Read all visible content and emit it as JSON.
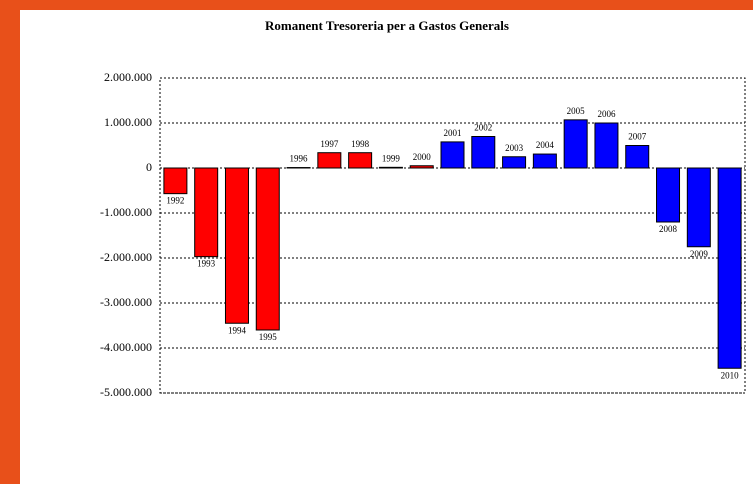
{
  "chart_data": {
    "type": "bar",
    "title": "Romanent Tresoreria per a Gastos Generals",
    "categories": [
      "1992",
      "1993",
      "1994",
      "1995",
      "1996",
      "1997",
      "1998",
      "1999",
      "2000",
      "2001",
      "2002",
      "2003",
      "2004",
      "2005",
      "2006",
      "2007",
      "2008",
      "2009",
      "2010"
    ],
    "values": [
      -570000,
      -1970000,
      -3450000,
      -3600000,
      10000,
      340000,
      340000,
      15000,
      50000,
      580000,
      700000,
      250000,
      310000,
      1070000,
      1000000,
      500000,
      -1200000,
      -1750000,
      -4450000
    ],
    "colors": [
      "#ff0000",
      "#ff0000",
      "#ff0000",
      "#ff0000",
      "#0000ff",
      "#ff0000",
      "#ff0000",
      "#0000ff",
      "#ff0000",
      "#0000ff",
      "#0000ff",
      "#0000ff",
      "#0000ff",
      "#0000ff",
      "#0000ff",
      "#0000ff",
      "#0000ff",
      "#0000ff",
      "#0000ff"
    ],
    "ylim": [
      -5000000,
      2000000
    ],
    "yticks": [
      {
        "value": -5000000,
        "label": "-5.000.000"
      },
      {
        "value": -4000000,
        "label": "-4.000.000"
      },
      {
        "value": -3000000,
        "label": "-3.000.000"
      },
      {
        "value": -2000000,
        "label": "-2.000.000"
      },
      {
        "value": -1000000,
        "label": "-1.000.000"
      },
      0,
      {
        "value": 1000000,
        "label": "1.000.000"
      },
      {
        "value": 2000000,
        "label": "2.000.000"
      }
    ],
    "grid": true
  }
}
